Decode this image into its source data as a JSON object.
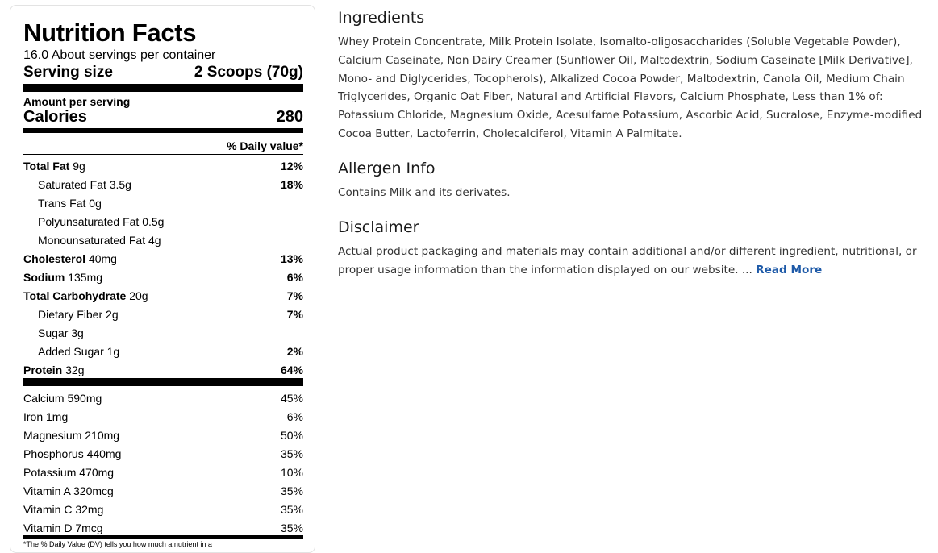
{
  "nutrition": {
    "title": "Nutrition Facts",
    "servings": "16.0 About servings per container",
    "serving_size_label": "Serving size",
    "serving_size_value": "2 Scoops (70g)",
    "amount_per_serving": "Amount per serving",
    "calories_label": "Calories",
    "calories_value": "280",
    "dv_header": "% Daily value*",
    "rows": [
      {
        "name": "Total Fat",
        "amount": "9g",
        "dv": "12%"
      },
      {
        "name": "Saturated Fat",
        "amount": "3.5g",
        "dv": "18%"
      },
      {
        "name": "Trans Fat",
        "amount": "0g",
        "dv": ""
      },
      {
        "name": "Polyunsaturated Fat",
        "amount": "0.5g",
        "dv": ""
      },
      {
        "name": "Monounsaturated Fat",
        "amount": "4g",
        "dv": ""
      },
      {
        "name": "Cholesterol",
        "amount": "40mg",
        "dv": "13%"
      },
      {
        "name": "Sodium",
        "amount": "135mg",
        "dv": "6%"
      },
      {
        "name": "Total Carbohydrate",
        "amount": "20g",
        "dv": "7%"
      },
      {
        "name": "Dietary Fiber",
        "amount": "2g",
        "dv": "7%"
      },
      {
        "name": "Sugar",
        "amount": "3g",
        "dv": ""
      },
      {
        "name": "Added Sugar",
        "amount": "1g",
        "dv": "2%"
      },
      {
        "name": "Protein",
        "amount": "32g",
        "dv": "64%"
      }
    ],
    "minerals": [
      {
        "name": "Calcium",
        "amount": "590mg",
        "dv": "45%"
      },
      {
        "name": "Iron",
        "amount": "1mg",
        "dv": "6%"
      },
      {
        "name": "Magnesium",
        "amount": "210mg",
        "dv": "50%"
      },
      {
        "name": "Phosphorus",
        "amount": "440mg",
        "dv": "35%"
      },
      {
        "name": "Potassium",
        "amount": "470mg",
        "dv": "10%"
      },
      {
        "name": "Vitamin A",
        "amount": "320mcg",
        "dv": "35%"
      },
      {
        "name": "Vitamin C",
        "amount": "32mg",
        "dv": "35%"
      },
      {
        "name": "Vitamin D",
        "amount": "7mcg",
        "dv": "35%"
      }
    ],
    "footnote": "*The % Daily Value (DV) tells you how much a nutrient in a"
  },
  "ingredients": {
    "heading": "Ingredients",
    "text": "Whey Protein Concentrate, Milk Protein Isolate, Isomalto-oligosaccharides (Soluble Vegetable Powder), Calcium Caseinate, Non Dairy Creamer (Sunflower Oil, Maltodextrin, Sodium Caseinate [Milk Derivative], Mono- and Diglycerides, Tocopherols), Alkalized Cocoa Powder, Maltodextrin, Canola Oil, Medium Chain Triglycerides, Organic Oat Fiber, Natural and Artificial Flavors, Calcium Phosphate, Less than 1% of: Potassium Chloride, Magnesium Oxide, Acesulfame Potassium, Ascorbic Acid, Sucralose, Enzyme-modified Cocoa Butter, Lactoferrin, Cholecalciferol, Vitamin A Palmitate."
  },
  "allergen": {
    "heading": "Allergen Info",
    "text": "Contains Milk and its derivates."
  },
  "disclaimer": {
    "heading": "Disclaimer",
    "text": "Actual product packaging and materials may contain additional and/or different ingredient, nutritional, or proper usage information than the information displayed on our website. ...",
    "read_more": "Read More"
  },
  "colors": {
    "link": "#1e5aa8",
    "rule": "#000000",
    "panel_border": "#e3e3e3"
  }
}
